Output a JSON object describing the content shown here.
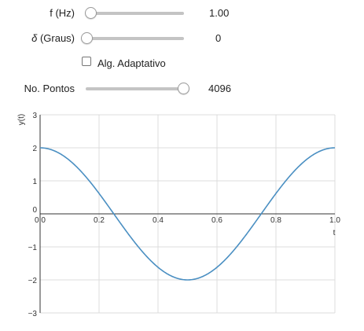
{
  "controls": {
    "freq": {
      "label": "f (Hz)",
      "value": "1.00",
      "fraction": 0
    },
    "phase": {
      "label_symbol": "δ",
      "label_rest": " (Graus)",
      "value": "0",
      "fraction": 0
    },
    "adaptive": {
      "label": "Alg. Adaptativo",
      "checked": false
    },
    "points": {
      "label": "No. Pontos",
      "value": "4096",
      "fraction": 1
    }
  },
  "chart_data": {
    "type": "line",
    "function": "2*cos(2*pi*f*t + delta)",
    "frequency_hz": 1.0,
    "phase_deg": 0,
    "amplitude": 2,
    "samples": 4096,
    "xlabel": "t",
    "ylabel": "y(t)",
    "xlim": [
      0,
      1
    ],
    "ylim": [
      -3,
      3
    ],
    "x_ticks": [
      "0.0",
      "0.2",
      "0.4",
      "0.6",
      "0.8",
      "1.0"
    ],
    "y_ticks": [
      "3",
      "2",
      "1",
      "0",
      "−1",
      "−2",
      "−3"
    ],
    "line_color": "#4a8fc2",
    "grid": true,
    "series": [
      {
        "x": [
          0,
          0.125,
          0.25,
          0.375,
          0.5,
          0.625,
          0.75,
          0.875,
          1.0
        ],
        "y": [
          2,
          1.414,
          0,
          -1.414,
          -2,
          -1.414,
          0,
          1.414,
          2
        ]
      }
    ]
  }
}
